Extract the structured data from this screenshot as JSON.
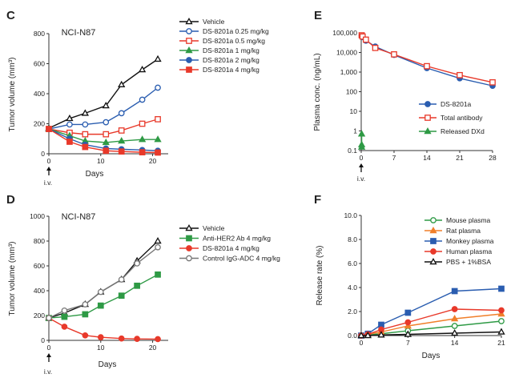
{
  "colors": {
    "vehicle": "#111111",
    "dose025": "#2a5db0",
    "dose05": "#e8392a",
    "dose1": "#2e9a45",
    "dose2": "#2a5db0",
    "dose4": "#e8392a",
    "antiHER2": "#2e9a45",
    "ds8201a_D": "#e8392a",
    "controlADC": "#777777",
    "plasma_ds": "#2a5db0",
    "plasma_total": "#e8392a",
    "plasma_dxd": "#2e9a45",
    "mouse": "#2e9a45",
    "rat": "#f07f2a",
    "monkey": "#2a5db0",
    "human": "#e8392a",
    "pbs": "#111111"
  },
  "chart_data": [
    {
      "panel": "C",
      "type": "line",
      "title": "NCI-N87",
      "xlabel": "Days",
      "ylabel": "Tumor volume (mm³)",
      "xlim": [
        0,
        23
      ],
      "ylim": [
        0,
        800
      ],
      "xticks": [
        0,
        10,
        20
      ],
      "yticks": [
        0,
        200,
        400,
        600,
        800
      ],
      "annotation": "i.v.",
      "series": [
        {
          "name": "Vehicle",
          "marker": "triangle-open",
          "color_key": "vehicle",
          "x": [
            0,
            4,
            7,
            11,
            14,
            18,
            21
          ],
          "y": [
            170,
            235,
            270,
            320,
            460,
            560,
            630
          ]
        },
        {
          "name": "DS-8201a 0.25 mg/kg",
          "marker": "circle-open",
          "color_key": "dose025",
          "x": [
            0,
            4,
            7,
            11,
            14,
            18,
            21
          ],
          "y": [
            165,
            195,
            195,
            210,
            270,
            360,
            440
          ]
        },
        {
          "name": "DS-8201a 0.5 mg/kg",
          "marker": "square-open",
          "color_key": "dose05",
          "x": [
            0,
            4,
            7,
            11,
            14,
            18,
            21
          ],
          "y": [
            165,
            140,
            130,
            130,
            155,
            200,
            230
          ]
        },
        {
          "name": "DS-8201a 1 mg/kg",
          "marker": "triangle-filled",
          "color_key": "dose1",
          "x": [
            0,
            4,
            7,
            11,
            14,
            18,
            21
          ],
          "y": [
            165,
            120,
            85,
            75,
            85,
            95,
            95
          ]
        },
        {
          "name": "DS-8201a 2 mg/kg",
          "marker": "circle-filled",
          "color_key": "dose2",
          "x": [
            0,
            4,
            7,
            11,
            14,
            18,
            21
          ],
          "y": [
            165,
            100,
            60,
            35,
            30,
            25,
            20
          ]
        },
        {
          "name": "DS-8201a 4 mg/kg",
          "marker": "square-filled",
          "color_key": "dose4",
          "x": [
            0,
            4,
            7,
            11,
            14,
            18,
            21
          ],
          "y": [
            165,
            80,
            45,
            20,
            15,
            10,
            8
          ]
        }
      ]
    },
    {
      "panel": "D",
      "type": "line",
      "title": "NCI-N87",
      "xlabel": "Days",
      "ylabel": "Tumor volume (mm³)",
      "xlim": [
        0,
        23
      ],
      "ylim": [
        0,
        1000
      ],
      "xticks": [
        0,
        10,
        20
      ],
      "yticks": [
        0,
        200,
        400,
        600,
        800,
        1000
      ],
      "annotation": "i.v.",
      "series": [
        {
          "name": "Vehicle",
          "marker": "triangle-open",
          "color_key": "vehicle",
          "x": [
            0,
            3,
            7,
            10,
            14,
            17,
            21
          ],
          "y": [
            180,
            220,
            290,
            390,
            490,
            640,
            800
          ]
        },
        {
          "name": "Anti-HER2 Ab 4 mg/kg",
          "marker": "square-filled",
          "color_key": "antiHER2",
          "x": [
            0,
            3,
            7,
            10,
            14,
            17,
            21
          ],
          "y": [
            180,
            190,
            210,
            280,
            360,
            440,
            530
          ]
        },
        {
          "name": "DS-8201a 4 mg/kg",
          "marker": "circle-filled",
          "color_key": "ds8201a_D",
          "x": [
            0,
            3,
            7,
            10,
            14,
            17,
            21
          ],
          "y": [
            180,
            110,
            40,
            25,
            15,
            12,
            10
          ]
        },
        {
          "name": "Control IgG-ADC 4 mg/kg",
          "marker": "circle-open",
          "color_key": "controlADC",
          "x": [
            0,
            3,
            7,
            10,
            14,
            17,
            21
          ],
          "y": [
            180,
            240,
            290,
            390,
            490,
            620,
            750
          ]
        }
      ]
    },
    {
      "panel": "E",
      "type": "line",
      "scale": "log",
      "xlabel": "",
      "ylabel": "Plasma conc. (ng/mL)",
      "xlim": [
        0,
        28
      ],
      "ylim": [
        0.1,
        100000
      ],
      "xticks": [
        0,
        7,
        14,
        21,
        28
      ],
      "yticks": [
        0.1,
        1,
        10,
        100,
        1000,
        10000,
        100000
      ],
      "ytick_labels": [
        "0.1",
        "1",
        "10",
        "100",
        "1,000",
        "10,000",
        "100,000"
      ],
      "annotation": "i.v.",
      "series": [
        {
          "name": "DS-8201a",
          "marker": "circle-filled",
          "color_key": "plasma_ds",
          "x": [
            0.1,
            0.3,
            1,
            3,
            7,
            14,
            21,
            28
          ],
          "y": [
            70000,
            60000,
            40000,
            20000,
            7500,
            1600,
            480,
            200
          ]
        },
        {
          "name": "Total antibody",
          "marker": "square-open",
          "color_key": "plasma_total",
          "x": [
            0.1,
            0.3,
            1,
            3,
            7,
            14,
            21,
            28
          ],
          "y": [
            75000,
            65000,
            45000,
            17000,
            8000,
            2000,
            700,
            300
          ]
        },
        {
          "name": "Released DXd",
          "marker": "triangle-filled",
          "color_key": "plasma_dxd",
          "x": [
            0.1,
            0.1,
            0.1
          ],
          "y": [
            0.7,
            0.2,
            0.15
          ]
        }
      ]
    },
    {
      "panel": "F",
      "type": "line",
      "xlabel": "Days",
      "ylabel": "Release rate (%)",
      "xlim": [
        0,
        21
      ],
      "ylim": [
        0,
        10
      ],
      "xticks": [
        0,
        7,
        14,
        21
      ],
      "yticks": [
        0.0,
        2.0,
        4.0,
        6.0,
        8.0,
        10.0
      ],
      "ytick_labels": [
        "0.0",
        "2.0",
        "4.0",
        "6.0",
        "8.0",
        "10.0"
      ],
      "series": [
        {
          "name": "Mouse plasma",
          "marker": "circle-open",
          "color_key": "mouse",
          "x": [
            0,
            1,
            3,
            7,
            14,
            21
          ],
          "y": [
            0.0,
            0.05,
            0.15,
            0.4,
            0.8,
            1.2
          ]
        },
        {
          "name": "Rat plasma",
          "marker": "triangle-filled",
          "color_key": "rat",
          "x": [
            0,
            1,
            3,
            7,
            14,
            21
          ],
          "y": [
            0.0,
            0.1,
            0.3,
            0.8,
            1.4,
            1.8
          ]
        },
        {
          "name": "Monkey plasma",
          "marker": "square-filled",
          "color_key": "monkey",
          "x": [
            0,
            1,
            3,
            7,
            14,
            21
          ],
          "y": [
            0.0,
            0.15,
            0.9,
            1.9,
            3.7,
            3.9
          ]
        },
        {
          "name": "Human plasma",
          "marker": "circle-filled",
          "color_key": "human",
          "x": [
            0,
            1,
            3,
            7,
            14,
            21
          ],
          "y": [
            0.0,
            0.1,
            0.5,
            1.1,
            2.2,
            2.1
          ]
        },
        {
          "name": "PBS + 1%BSA",
          "marker": "triangle-open",
          "color_key": "pbs",
          "x": [
            0,
            1,
            3,
            7,
            14,
            21
          ],
          "y": [
            0.0,
            0.0,
            0.05,
            0.1,
            0.2,
            0.3
          ]
        }
      ]
    }
  ]
}
